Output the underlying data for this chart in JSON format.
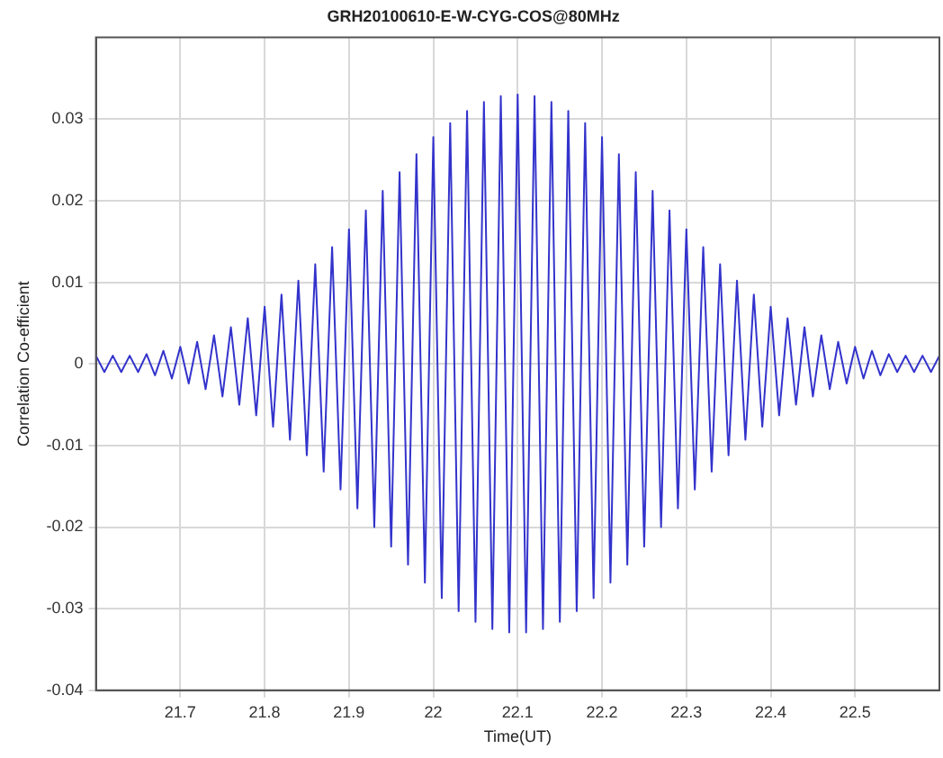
{
  "chart_data": {
    "type": "line",
    "title": "GRH20100610-E-W-CYG-COS@80MHz",
    "xlabel": "Time(UT)",
    "ylabel": "Correlation Co-efficient",
    "x": [
      21.6,
      21.61,
      21.62,
      21.63,
      21.64,
      21.65,
      21.66,
      21.67,
      21.68,
      21.69,
      21.7,
      21.71,
      21.72,
      21.73,
      21.74,
      21.75,
      21.76,
      21.77,
      21.78,
      21.79,
      21.8,
      21.81,
      21.82,
      21.83,
      21.84,
      21.85,
      21.86,
      21.87,
      21.88,
      21.89,
      21.9,
      21.91,
      21.92,
      21.93,
      21.94,
      21.95,
      21.96,
      21.97,
      21.98,
      21.99,
      22.0,
      22.01,
      22.02,
      22.03,
      22.04,
      22.05,
      22.06,
      22.07,
      22.08,
      22.09,
      22.1,
      22.11,
      22.12,
      22.13,
      22.14,
      22.15,
      22.16,
      22.17,
      22.18,
      22.19,
      22.2,
      22.21,
      22.22,
      22.23,
      22.24,
      22.25,
      22.26,
      22.27,
      22.28,
      22.29,
      22.3,
      22.31,
      22.32,
      22.33,
      22.34,
      22.35,
      22.36,
      22.37,
      22.38,
      22.39,
      22.4,
      22.41,
      22.42,
      22.43,
      22.44,
      22.45,
      22.46,
      22.47,
      22.48,
      22.49,
      22.5,
      22.51,
      22.52,
      22.53,
      22.54,
      22.55,
      22.56,
      22.57,
      22.58,
      22.59,
      22.6
    ],
    "series": [
      {
        "color": "#3333cc",
        "values": [
          0.001,
          -0.001,
          0.001,
          -0.001,
          0.001,
          -0.001,
          0.0012,
          -0.0014,
          0.0016,
          -0.0018,
          0.0021,
          -0.0024,
          0.0027,
          -0.0031,
          0.0035,
          -0.004,
          0.0045,
          -0.005,
          0.0056,
          -0.0063,
          0.007,
          -0.0077,
          0.0085,
          -0.0093,
          0.0102,
          -0.0112,
          0.0122,
          -0.0132,
          0.0143,
          -0.0154,
          0.0165,
          -0.0177,
          0.0188,
          -0.02,
          0.0212,
          -0.0224,
          0.0235,
          -0.0246,
          0.0257,
          -0.0268,
          0.0278,
          -0.0287,
          0.0295,
          -0.0303,
          0.031,
          -0.0316,
          0.0321,
          -0.0325,
          0.0328,
          -0.0329,
          0.033,
          -0.0329,
          0.0328,
          -0.0325,
          0.0321,
          -0.0316,
          0.031,
          -0.0303,
          0.0295,
          -0.0287,
          0.0278,
          -0.0268,
          0.0257,
          -0.0246,
          0.0235,
          -0.0224,
          0.0212,
          -0.02,
          0.0188,
          -0.0177,
          0.0165,
          -0.0154,
          0.0143,
          -0.0132,
          0.0122,
          -0.0112,
          0.0102,
          -0.0093,
          0.0085,
          -0.0077,
          0.007,
          -0.0063,
          0.0056,
          -0.005,
          0.0045,
          -0.004,
          0.0035,
          -0.0031,
          0.0027,
          -0.0024,
          0.0021,
          -0.0018,
          0.0016,
          -0.0014,
          0.0012,
          -0.001,
          0.001,
          -0.001,
          0.001,
          -0.001,
          0.001
        ]
      }
    ],
    "xlim": [
      21.6,
      22.6
    ],
    "xticks": [
      21.7,
      21.8,
      21.9,
      22.0,
      22.1,
      22.2,
      22.3,
      22.4,
      22.5
    ],
    "ylim": [
      -0.04,
      0.04
    ],
    "yticks": [
      -0.04,
      -0.03,
      -0.02,
      -0.01,
      0,
      0.01,
      0.02,
      0.03
    ],
    "grid": true,
    "legend": false,
    "marker": "none",
    "line_style": "solid"
  }
}
